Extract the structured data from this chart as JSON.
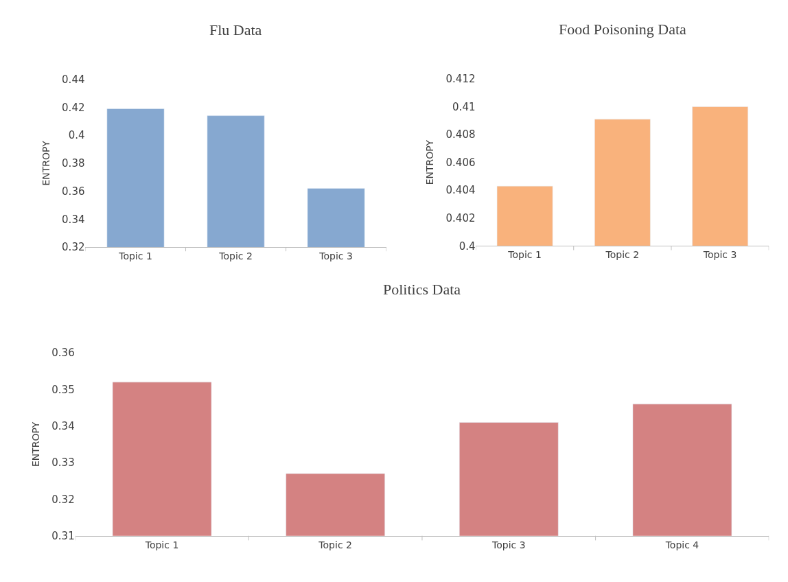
{
  "chart_data": [
    {
      "type": "bar",
      "title": "Flu Data",
      "ylabel": "ENTROPY",
      "categories": [
        "Topic 1",
        "Topic 2",
        "Topic 3"
      ],
      "values": [
        0.419,
        0.414,
        0.362
      ],
      "color": "#86a8d0",
      "ylim": [
        0.32,
        0.44
      ],
      "yticks": [
        0.32,
        0.34,
        0.36,
        0.38,
        0.4,
        0.42,
        0.44
      ],
      "grid": false
    },
    {
      "type": "bar",
      "title": "Food Poisoning Data",
      "ylabel": "ENTROPY",
      "categories": [
        "Topic 1",
        "Topic 2",
        "Topic 3"
      ],
      "values": [
        0.4043,
        0.4091,
        0.41
      ],
      "color": "#f9b27c",
      "ylim": [
        0.4,
        0.412
      ],
      "yticks": [
        0.4,
        0.402,
        0.404,
        0.406,
        0.408,
        0.41,
        0.412
      ],
      "grid": false
    },
    {
      "type": "bar",
      "title": "Politics Data",
      "ylabel": "ENTROPY",
      "categories": [
        "Topic 1",
        "Topic 2",
        "Topic 3",
        "Topic 4"
      ],
      "values": [
        0.352,
        0.327,
        0.341,
        0.346
      ],
      "color": "#d48282",
      "ylim": [
        0.31,
        0.36
      ],
      "yticks": [
        0.31,
        0.32,
        0.33,
        0.34,
        0.35,
        0.36
      ],
      "grid": false
    }
  ]
}
